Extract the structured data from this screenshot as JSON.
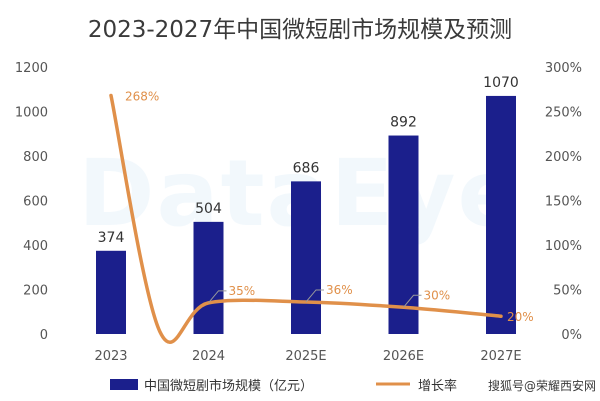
{
  "chart_data": {
    "type": "bar",
    "title": "2023-2027年中国微短剧市场规模及预测",
    "categories": [
      "2023",
      "2024",
      "2025E",
      "2026E",
      "2027E"
    ],
    "series": [
      {
        "name": "中国微短剧市场规模（亿元）",
        "type": "bar",
        "axis": "left",
        "values": [
          374,
          504,
          686,
          892,
          1070
        ]
      },
      {
        "name": "增长率",
        "type": "line",
        "axis": "right",
        "values": [
          268,
          35,
          36,
          30,
          20
        ],
        "labels": [
          "268%",
          "35%",
          "36%",
          "30%",
          "20%"
        ]
      }
    ],
    "left_axis": {
      "ticks": [
        0,
        200,
        400,
        600,
        800,
        1000,
        1200
      ],
      "ylim": [
        0,
        1200
      ]
    },
    "right_axis": {
      "ticks": [
        "0%",
        "50%",
        "100%",
        "150%",
        "200%",
        "250%",
        "300%"
      ],
      "ylim": [
        0,
        300
      ]
    },
    "grid": false,
    "legend_position": "bottom"
  },
  "colors": {
    "bar": "#1b1f8c",
    "line": "#e0904a",
    "rate_label": "#e0904a"
  },
  "watermark": "DataEye",
  "footer": "搜狐号@荣耀西安网"
}
